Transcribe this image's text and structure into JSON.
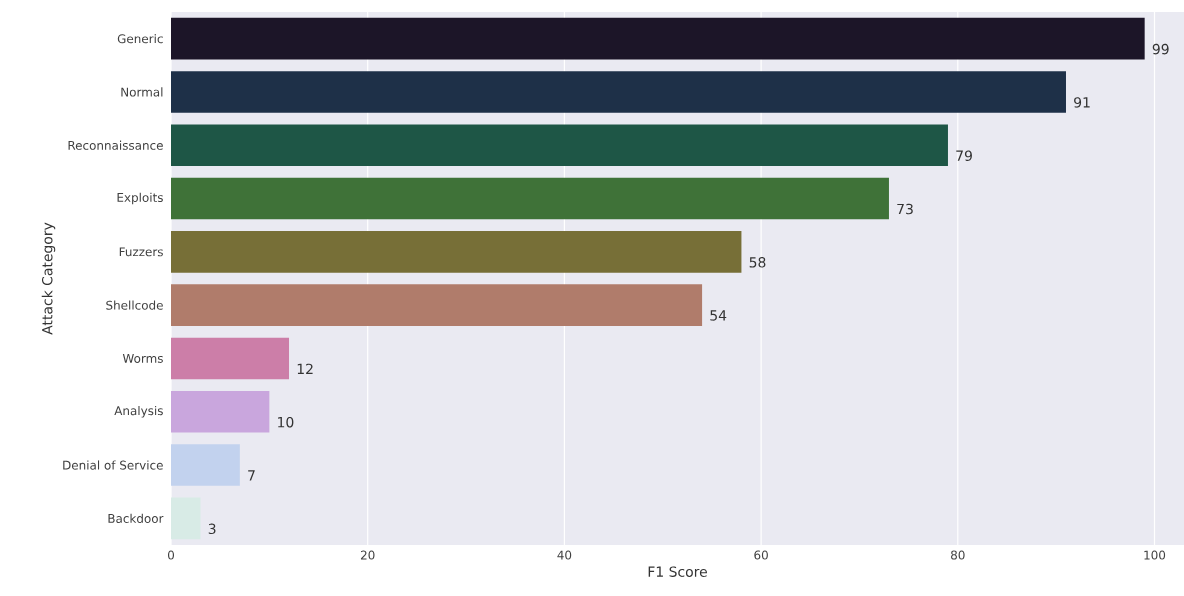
{
  "chart_data": {
    "type": "bar",
    "orientation": "horizontal",
    "xlabel": "F1 Score",
    "ylabel": "Attack Category",
    "categories": [
      "Generic",
      "Normal",
      "Reconnaissance",
      "Exploits",
      "Fuzzers",
      "Shellcode",
      "Worms",
      "Analysis",
      "Denial of Service",
      "Backdoor"
    ],
    "values": [
      99,
      91,
      79,
      73,
      58,
      54,
      12,
      10,
      7,
      3
    ],
    "colors": [
      "#1c1528",
      "#1e3048",
      "#1e5646",
      "#3f7238",
      "#776f37",
      "#b07c6b",
      "#cc7ea8",
      "#c9a6dd",
      "#c2d2ee",
      "#d8ebe6"
    ],
    "xlim": [
      0,
      103
    ],
    "xticks": [
      0,
      20,
      40,
      60,
      80,
      100
    ],
    "grid": "x",
    "data_labels": true
  }
}
